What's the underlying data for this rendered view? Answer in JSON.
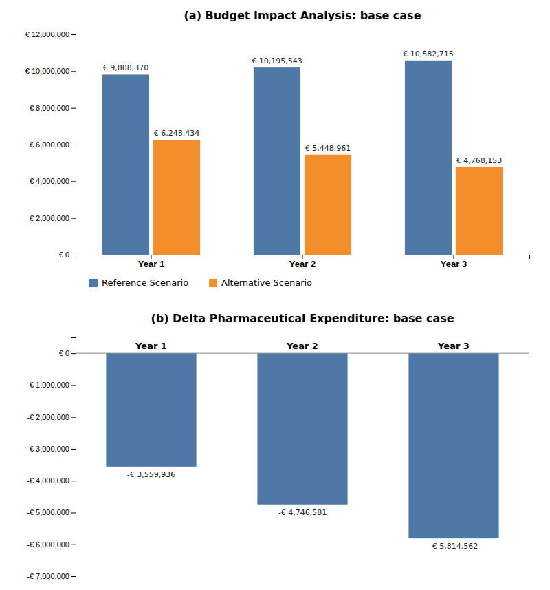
{
  "chart_data": [
    {
      "type": "bar",
      "title": "(a) Budget Impact Analysis: base case",
      "categories": [
        "Year 1",
        "Year 2",
        "Year 3"
      ],
      "series": [
        {
          "name": "Reference Scenario",
          "values": [
            9808370,
            10195543,
            10582715
          ],
          "value_labels": [
            "€ 9,808,370",
            "€ 10,195,543",
            "€ 10,582,715"
          ]
        },
        {
          "name": "Alternative Scenario",
          "values": [
            6248434,
            5448961,
            4768153
          ],
          "value_labels": [
            "€ 6,248,434",
            "€ 5,448,961",
            "€ 4,768,153"
          ]
        }
      ],
      "ylim": [
        0,
        12000000
      ],
      "yticks": [
        {
          "value": 0,
          "label": "€ 0"
        },
        {
          "value": 2000000,
          "label": "€ 2,000,000"
        },
        {
          "value": 4000000,
          "label": "€ 4,000,000"
        },
        {
          "value": 6000000,
          "label": "€ 6,000,000"
        },
        {
          "value": 8000000,
          "label": "€ 8,000,000"
        },
        {
          "value": 10000000,
          "label": "€ 10,000,000"
        },
        {
          "value": 12000000,
          "label": "€ 12,000,000"
        }
      ],
      "grid": false,
      "legend": "bottom",
      "data_labels": true
    },
    {
      "type": "bar",
      "title": "(b) Delta Pharmaceutical Expenditure: base case",
      "categories": [
        "Year 1",
        "Year 2",
        "Year 3"
      ],
      "values": [
        -3559936,
        -4746581,
        -5814562
      ],
      "value_labels": [
        "-€ 3,559,936",
        "-€ 4,746,581",
        "-€ 5,814,562"
      ],
      "ylim": [
        -7000000,
        500000
      ],
      "yticks": [
        {
          "value": -7000000,
          "label": "-€ 7,000,000"
        },
        {
          "value": -6000000,
          "label": "-€ 6,000,000"
        },
        {
          "value": -5000000,
          "label": "-€ 5,000,000"
        },
        {
          "value": -4000000,
          "label": "-€ 4,000,000"
        },
        {
          "value": -3000000,
          "label": "-€ 3,000,000"
        },
        {
          "value": -2000000,
          "label": "-€ 2,000,000"
        },
        {
          "value": -1000000,
          "label": "-€ 1,000,000"
        },
        {
          "value": 0,
          "label": "€ 0"
        }
      ],
      "grid": false,
      "data_labels": true
    }
  ]
}
